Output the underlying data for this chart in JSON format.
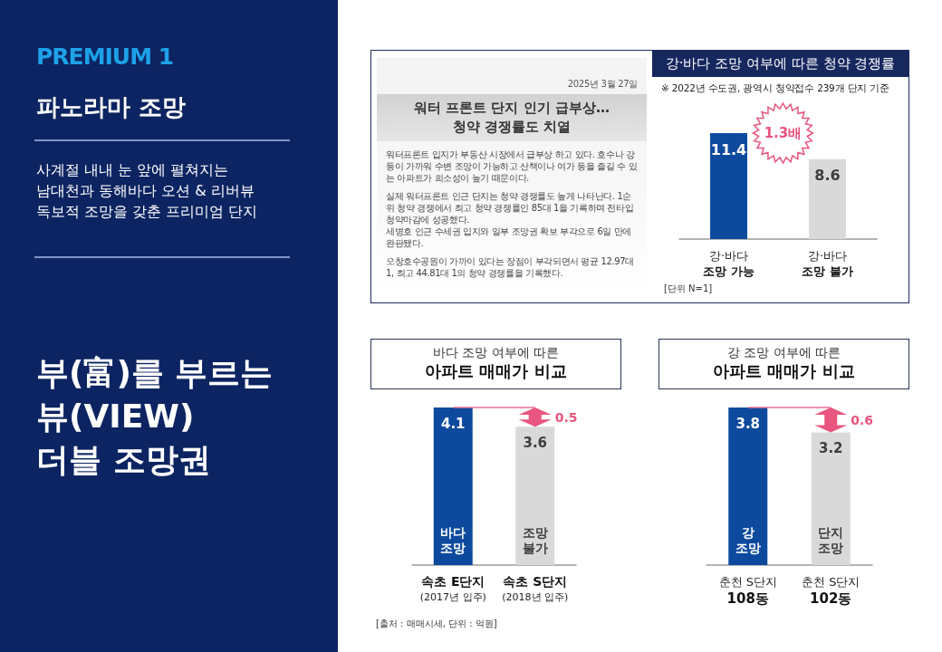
{
  "chart_data": [
    {
      "type": "other",
      "subtitle": "PREMIUM 1",
      "title": "파노라마 조망",
      "annotations": [
        "사계절 내내 눈 앞에 펼쳐지는\n남대천과 동해바다 오션 & 리버뷰\n독보적 조망을 갖춘 프리미엄 단지",
        "부(富)를 부르는\n뷰(VIEW)\n더블 조망권"
      ]
    },
    {
      "type": "other",
      "subtitle": "2025년 3월 27일",
      "title": "워터 프론트 단지 인기 급부상…\n청약 경쟁률도 치열",
      "annotations": [
        "워터프론트 입지가 부동산 시장에서 급부상 하고 있다. 호수나 강 등이 가까워 수변 조망이 가능하고 산책이나 여가 등을 즐길 수 있는 아파트가 희소성이 높기 때문이다.",
        "실제 워터프론트 인근 단지는 청약 경쟁률도 높게 나타난다. 1순위 청약 경쟁에서 최고 청약 경쟁률인 85대 1을 기록하며 전타입 청약마감에 성공했다.\n세병호 인근 수세권 입지와 일부 조망권 확보 부각으로 6일 만에 완판됐다.",
        "오창호수공원이 가까이 있다는 장점이 부각되면서 평균 12.97대 1, 최고 44.81대 1의 청약 경쟁률을 기록했다."
      ]
    },
    {
      "type": "bar",
      "title": "강·바다 조망 여부에 따른 청약 경쟁률",
      "subtitle": "※ 2022년 수도권, 광역시 청약접수 239개 단지 기준",
      "categories": [
        "강·바다\n조망 가능",
        "강·바다\n조망 불가"
      ],
      "values": [
        11.4,
        8.6
      ],
      "colors": [
        "#0d4a9e",
        "#d9d9d9"
      ],
      "data_labels": true,
      "tick_labels": "x",
      "annotations": [
        "1.3배",
        "[단위 N=1]"
      ]
    },
    {
      "type": "bar",
      "subtitle": "바다 조망 여부에 따른",
      "title": "아파트 매매가 비교",
      "categories": [
        "속초 E단지\n(2017년 입주)",
        "속초 S단지\n(2018년 입주)"
      ],
      "values": [
        4.1,
        3.6
      ],
      "colors": [
        "#0d4a9e",
        "#d9d9d9"
      ],
      "data_labels": true,
      "tick_labels": "x",
      "ref_lines": [
        {
          "axis": "y",
          "value": 4.1,
          "color": "#ec6f91"
        }
      ],
      "annotations": [
        "바다\n조망",
        "조망\n불가",
        {
          "text": "0.5",
          "x": "속초 S단지\n(2018년 입주)",
          "y": 3.85
        },
        "[출처 : 매매시세, 단위 : 억원]"
      ]
    },
    {
      "type": "bar",
      "subtitle": "강 조망 여부에 따른",
      "title": "아파트 매매가 비교",
      "categories": [
        "춘천 S단지\n108동",
        "춘천 S단지\n102동"
      ],
      "values": [
        3.8,
        3.2
      ],
      "colors": [
        "#0d4a9e",
        "#d9d9d9"
      ],
      "data_labels": true,
      "tick_labels": "x",
      "ref_lines": [
        {
          "axis": "y",
          "value": 3.8,
          "color": "#ec6f91"
        }
      ],
      "annotations": [
        "강\n조망",
        "단지\n조망",
        {
          "text": "0.6",
          "x": "춘천 S단지\n102동",
          "y": 3.5
        }
      ]
    }
  ]
}
